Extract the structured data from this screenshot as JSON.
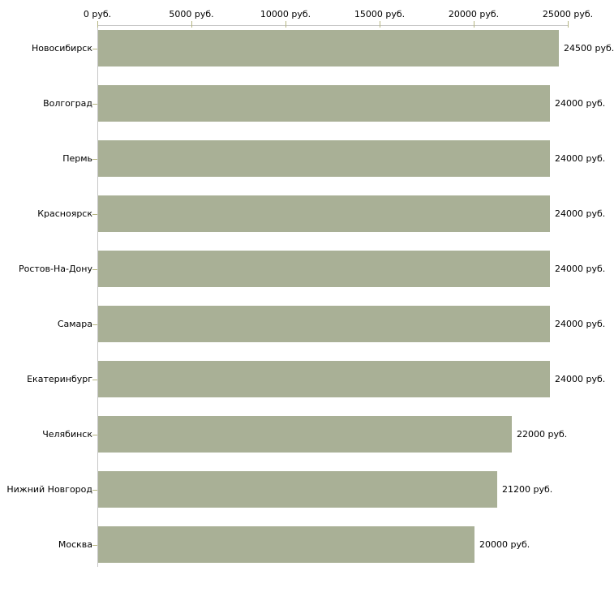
{
  "chart_data": {
    "type": "bar",
    "orientation": "horizontal",
    "title": "",
    "categories": [
      "Новосибирск",
      "Волгоград",
      "Пермь",
      "Красноярск",
      "Ростов-На-Дону",
      "Самара",
      "Екатеринбург",
      "Челябинск",
      "Нижний Новгород",
      "Москва"
    ],
    "values": [
      24500,
      24000,
      24000,
      24000,
      24000,
      24000,
      24000,
      22000,
      21200,
      20000
    ],
    "value_labels": [
      "24500 руб.",
      "24000 руб.",
      "24000 руб.",
      "24000 руб.",
      "24000 руб.",
      "24000 руб.",
      "24000 руб.",
      "22000 руб.",
      "21200 руб.",
      "20000 руб."
    ],
    "x_axis": {
      "position": "top",
      "unit": "руб.",
      "min": 0,
      "max": 25000,
      "ticks": [
        0,
        5000,
        10000,
        15000,
        20000,
        25000
      ],
      "tick_labels": [
        "0 руб.",
        "5000 руб.",
        "10000 руб.",
        "15000 руб.",
        "20000 руб.",
        "25000 руб."
      ]
    },
    "grid": false,
    "legend": false,
    "colors": {
      "bar": "#a9b096",
      "axis_line": "#c6c6c6",
      "tick_mark": "#b6b682",
      "text": "#000000"
    }
  }
}
